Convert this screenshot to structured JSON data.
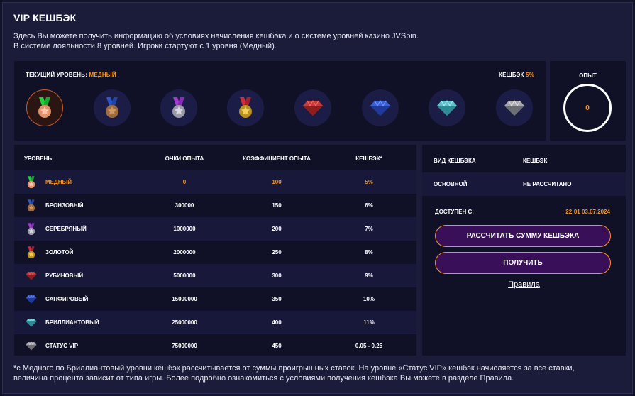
{
  "header": {
    "title": "VIP КЕШБЭК",
    "line1": "Здесь Вы можете получить информацию об условиях начисления кешбэка и о системе уровней казино JVSpin.",
    "line2": "В системе лояльности 8 уровней. Игроки стартуют с 1 уровня (Медный)."
  },
  "levels_panel": {
    "current_label": "ТЕКУЩИЙ УРОВЕНЬ: ",
    "current_value": "МЕДНЫЙ",
    "cashback_label": "КЕШБЭК ",
    "cashback_value": "5%",
    "badges": [
      "copper-medal-icon",
      "bronze-medal-icon",
      "silver-medal-icon",
      "gold-medal-icon",
      "ruby-icon",
      "sapphire-icon",
      "diamond-icon",
      "vip-diamond-icon"
    ]
  },
  "experience": {
    "label": "ОПЫТ",
    "value": "0"
  },
  "table": {
    "headers": {
      "level": "УРОВЕНЬ",
      "points": "ОЧКИ ОПЫТА",
      "coef": "КОЭФФИЦИЕНТ ОПЫТА",
      "cashback": "КЕШБЭК*"
    },
    "rows": [
      {
        "name": "МЕДНЫЙ",
        "points": "0",
        "coef": "100",
        "cashback": "5%"
      },
      {
        "name": "БРОНЗОВЫЙ",
        "points": "300000",
        "coef": "150",
        "cashback": "6%"
      },
      {
        "name": "СЕРЕБРЯНЫЙ",
        "points": "1000000",
        "coef": "200",
        "cashback": "7%"
      },
      {
        "name": "ЗОЛОТОЙ",
        "points": "2000000",
        "coef": "250",
        "cashback": "8%"
      },
      {
        "name": "РУБИНОВЫЙ",
        "points": "5000000",
        "coef": "300",
        "cashback": "9%"
      },
      {
        "name": "САПФИРОВЫЙ",
        "points": "15000000",
        "coef": "350",
        "cashback": "10%"
      },
      {
        "name": "БРИЛЛИАНТОВЫЙ",
        "points": "25000000",
        "coef": "400",
        "cashback": "11%"
      },
      {
        "name": "СТАТУС VIP",
        "points": "75000000",
        "coef": "450",
        "cashback": "0.05 - 0.25"
      }
    ]
  },
  "cashback_panel": {
    "type_header": "ВИД КЕШБЭКА",
    "cashback_header": "КЕШБЭК",
    "type_value": "ОСНОВНОЙ",
    "cashback_value": "НЕ РАССЧИТАНО",
    "available_label": "ДОСТУПЕН С:",
    "available_value": "22:01 03.07.2024",
    "calc_button": "РАССЧИТАТЬ СУММУ КЕШБЭКА",
    "get_button": "ПОЛУЧИТЬ",
    "rules_link": "Правила"
  },
  "footnote": {
    "line1": "*с Медного по Бриллиантовый уровни кешбэк рассчитывается от суммы проигрышных ставок. На уровне «Статус VIP» кешбэк начисляется за все ставки,",
    "line2": "величина процента зависит от типа игры. Более подробно ознакомиться с условиями получения кешбэка Вы можете в разделе Правила."
  },
  "colors": {
    "accent": "#f7941d",
    "background": "#1a1c3a",
    "panel": "#101127",
    "button_fill": "#3a0f5a"
  }
}
